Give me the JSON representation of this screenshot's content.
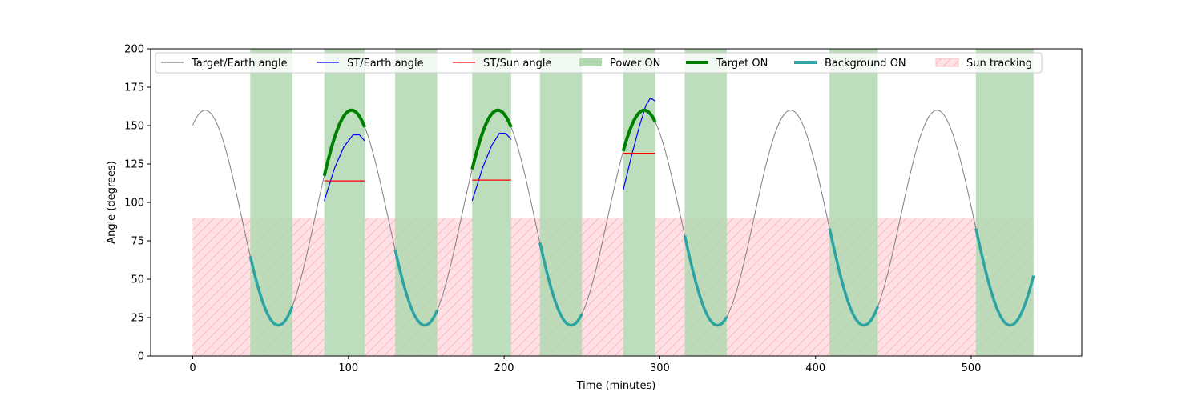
{
  "chart_data": {
    "type": "line",
    "title": "",
    "xlabel": "Time (minutes)",
    "ylabel": "Angle (degrees)",
    "xlim": [
      -27,
      571
    ],
    "ylim": [
      0,
      200
    ],
    "x_ticks": [
      0,
      100,
      200,
      300,
      400,
      500
    ],
    "y_ticks": [
      0,
      25,
      50,
      75,
      100,
      125,
      150,
      175,
      200
    ],
    "grid": false,
    "legend_position": "top",
    "target_earth_angle": {
      "mean": 90,
      "amplitude": 70,
      "period": 94,
      "peak_time": 8,
      "range": [
        0,
        540
      ]
    },
    "st_earth_angle": [
      {
        "x": [
          84.5,
          91,
          97,
          103,
          107,
          110.5
        ],
        "y": [
          101,
          122,
          136,
          144,
          144,
          140
        ]
      },
      {
        "x": [
          179.5,
          186,
          192,
          197,
          201,
          204.5
        ],
        "y": [
          101,
          122,
          137,
          145,
          145,
          141
        ]
      },
      {
        "x": [
          276.5,
          282,
          287,
          291,
          294,
          297
        ],
        "y": [
          108,
          131,
          150,
          163,
          168,
          166
        ]
      }
    ],
    "st_sun_angle": [
      {
        "x": [
          84.5,
          110.5
        ],
        "y": [
          114,
          114
        ]
      },
      {
        "x": [
          179.5,
          204.5
        ],
        "y": [
          114.5,
          114.5
        ]
      },
      {
        "x": [
          276.5,
          297
        ],
        "y": [
          132,
          132
        ]
      }
    ],
    "power_on": [
      [
        37,
        64
      ],
      [
        84.5,
        110.5
      ],
      [
        130,
        157
      ],
      [
        179.5,
        204.5
      ],
      [
        223,
        250
      ],
      [
        276.5,
        297
      ],
      [
        316,
        343
      ],
      [
        409,
        440
      ],
      [
        503,
        540
      ]
    ],
    "target_on": [
      [
        84.5,
        110.5
      ],
      [
        179.5,
        204.5
      ],
      [
        276.5,
        297
      ]
    ],
    "background_on": [
      [
        37,
        64
      ],
      [
        130,
        157
      ],
      [
        223,
        250
      ],
      [
        316,
        343
      ],
      [
        409,
        440
      ],
      [
        503,
        540
      ]
    ],
    "sun_tracking": {
      "y": [
        0,
        90
      ],
      "spans": [
        [
          0,
          84.5
        ],
        [
          110.5,
          179.5
        ],
        [
          204.5,
          276.5
        ],
        [
          297,
          540
        ]
      ]
    },
    "colors": {
      "target_earth": "#808080",
      "st_earth": "#0000ff",
      "st_sun": "#ff0000",
      "power_on": "#b2d8b2",
      "target_on": "#008000",
      "background_on": "#2ca4a4",
      "sun_tracking_fill": "#ffe0e4",
      "sun_tracking_hatch": "#f7b4bd"
    },
    "legend": [
      {
        "key": "target_earth",
        "label": "Target/Earth angle",
        "kind": "thin"
      },
      {
        "key": "st_earth",
        "label": "ST/Earth angle",
        "kind": "thin"
      },
      {
        "key": "st_sun",
        "label": "ST/Sun angle",
        "kind": "thin"
      },
      {
        "key": "power_on",
        "label": "Power ON",
        "kind": "patch"
      },
      {
        "key": "target_on",
        "label": "Target ON",
        "kind": "thick"
      },
      {
        "key": "background_on",
        "label": "Background ON",
        "kind": "thick"
      },
      {
        "key": "sun_tracking",
        "label": "Sun tracking",
        "kind": "hatch"
      }
    ]
  }
}
